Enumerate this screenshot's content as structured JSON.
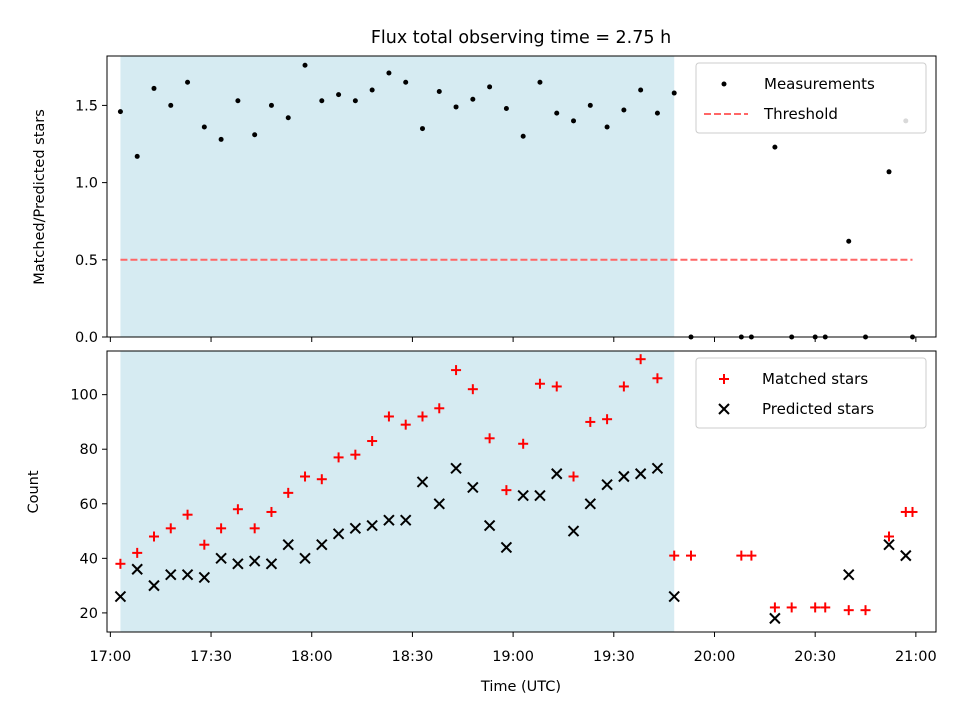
{
  "title": "Flux total observing time = 2.75 h",
  "x_ticks": [
    "17:00",
    "17:30",
    "18:00",
    "18:30",
    "19:00",
    "19:30",
    "20:00",
    "20:30",
    "21:00"
  ],
  "xlabel": "Time (UTC)",
  "colors": {
    "shade": "#add8e6",
    "measurements": "#000000",
    "threshold": "#ff6666",
    "matched": "#ff0000",
    "predicted": "#000000"
  },
  "chart_data": [
    {
      "type": "scatter",
      "panel": "top",
      "ylabel": "Matched/Predicted stars",
      "xlim": [
        "16:59",
        "21:06"
      ],
      "ylim": [
        0,
        1.82
      ],
      "y_ticks": [
        "0.0",
        "0.5",
        "1.0",
        "1.5"
      ],
      "grid": false,
      "legend_position": "top-right",
      "shaded_interval": [
        "17:03",
        "19:48"
      ],
      "threshold": {
        "name": "Threshold",
        "value": 0.5,
        "x": [
          "17:03",
          "20:59"
        ]
      },
      "series": [
        {
          "name": "Measurements",
          "x": [
            "17:03",
            "17:08",
            "17:13",
            "17:18",
            "17:23",
            "17:28",
            "17:33",
            "17:38",
            "17:43",
            "17:48",
            "17:53",
            "17:58",
            "18:03",
            "18:08",
            "18:13",
            "18:18",
            "18:23",
            "18:28",
            "18:33",
            "18:38",
            "18:43",
            "18:48",
            "18:53",
            "18:58",
            "19:03",
            "19:08",
            "19:13",
            "19:18",
            "19:23",
            "19:28",
            "19:33",
            "19:38",
            "19:43",
            "19:48",
            "19:53",
            "20:08",
            "20:11",
            "20:18",
            "20:23",
            "20:30",
            "20:33",
            "20:40",
            "20:45",
            "20:52",
            "20:57",
            "20:59"
          ],
          "y": [
            1.46,
            1.17,
            1.61,
            1.5,
            1.65,
            1.36,
            1.28,
            1.53,
            1.31,
            1.5,
            1.42,
            1.76,
            1.53,
            1.57,
            1.53,
            1.6,
            1.71,
            1.65,
            1.35,
            1.59,
            1.49,
            1.54,
            1.62,
            1.48,
            1.3,
            1.65,
            1.45,
            1.4,
            1.5,
            1.36,
            1.47,
            1.6,
            1.45,
            1.58,
            0,
            0,
            0,
            1.23,
            0,
            0,
            0,
            0.62,
            0,
            1.07,
            1.4,
            0
          ]
        }
      ]
    },
    {
      "type": "scatter",
      "panel": "bottom",
      "ylabel": "Count",
      "xlim": [
        "16:59",
        "21:06"
      ],
      "ylim": [
        13,
        116
      ],
      "y_ticks": [
        "20",
        "40",
        "60",
        "80",
        "100"
      ],
      "grid": false,
      "legend_position": "top-right",
      "shaded_interval": [
        "17:03",
        "19:48"
      ],
      "series": [
        {
          "name": "Matched stars",
          "marker": "+",
          "x": [
            "17:03",
            "17:08",
            "17:13",
            "17:18",
            "17:23",
            "17:28",
            "17:33",
            "17:38",
            "17:43",
            "17:48",
            "17:53",
            "17:58",
            "18:03",
            "18:08",
            "18:13",
            "18:18",
            "18:23",
            "18:28",
            "18:33",
            "18:38",
            "18:43",
            "18:48",
            "18:53",
            "18:58",
            "19:03",
            "19:08",
            "19:13",
            "19:18",
            "19:23",
            "19:28",
            "19:33",
            "19:38",
            "19:43",
            "19:48",
            "19:53",
            "20:08",
            "20:11",
            "20:18",
            "20:23",
            "20:30",
            "20:33",
            "20:40",
            "20:45",
            "20:52",
            "20:57",
            "20:59"
          ],
          "y": [
            38,
            42,
            48,
            51,
            56,
            45,
            51,
            58,
            51,
            57,
            64,
            70,
            69,
            77,
            78,
            83,
            92,
            89,
            92,
            95,
            109,
            102,
            84,
            65,
            82,
            104,
            103,
            70,
            90,
            91,
            103,
            113,
            106,
            41,
            41,
            41,
            41,
            22,
            22,
            22,
            22,
            21,
            21,
            48,
            57,
            57
          ]
        },
        {
          "name": "Predicted stars",
          "marker": "x",
          "x": [
            "17:03",
            "17:08",
            "17:13",
            "17:18",
            "17:23",
            "17:28",
            "17:33",
            "17:38",
            "17:43",
            "17:48",
            "17:53",
            "17:58",
            "18:03",
            "18:08",
            "18:13",
            "18:18",
            "18:23",
            "18:28",
            "18:33",
            "18:38",
            "18:43",
            "18:48",
            "18:53",
            "18:58",
            "19:03",
            "19:08",
            "19:13",
            "19:18",
            "19:23",
            "19:28",
            "19:33",
            "19:38",
            "19:43",
            "19:48",
            "20:18",
            "20:40",
            "20:52",
            "20:57"
          ],
          "y": [
            26,
            36,
            30,
            34,
            34,
            33,
            40,
            38,
            39,
            38,
            45,
            40,
            45,
            49,
            51,
            52,
            54,
            54,
            68,
            60,
            73,
            66,
            52,
            44,
            63,
            63,
            71,
            50,
            60,
            67,
            70,
            71,
            73,
            26,
            18,
            34,
            45,
            41
          ]
        }
      ]
    }
  ]
}
